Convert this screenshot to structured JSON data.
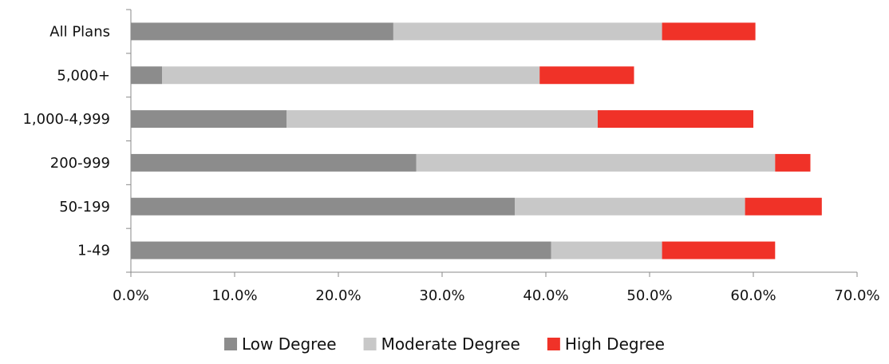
{
  "chart_data": {
    "type": "bar",
    "orientation": "horizontal",
    "stacked": true,
    "categories": [
      "All Plans",
      "5,000+",
      "1,000-4,999",
      "200-999",
      "50-199",
      "1-49"
    ],
    "series": [
      {
        "name": "Low Degree",
        "color": "#8c8c8c",
        "values": [
          25.3,
          3.0,
          15.0,
          27.5,
          37.0,
          40.5
        ]
      },
      {
        "name": "Moderate Degree",
        "color": "#c8c8c8",
        "values": [
          25.9,
          36.4,
          30.0,
          34.6,
          22.2,
          10.7
        ]
      },
      {
        "name": "High Degree",
        "color": "#f03228",
        "values": [
          9.0,
          9.1,
          15.0,
          3.4,
          7.4,
          10.9
        ]
      }
    ],
    "xlim": [
      0,
      70
    ],
    "xticks": [
      "0.0%",
      "10.0%",
      "20.0%",
      "30.0%",
      "40.0%",
      "50.0%",
      "60.0%",
      "70.0%"
    ],
    "xtick_values": [
      0,
      10,
      20,
      30,
      40,
      50,
      60,
      70
    ],
    "legend": "bottom",
    "grid": false,
    "axis_color": "#8a8a8a"
  }
}
